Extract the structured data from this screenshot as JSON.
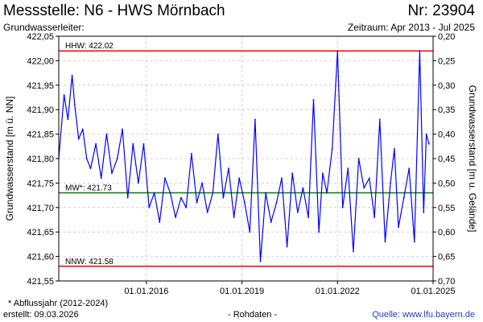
{
  "header": {
    "title": "Messstelle: N6 - HWS Mörnbach",
    "number": "Nr: 23904",
    "aquifer": "Grundwasserleiter:",
    "period": "Zeitraum: Apr 2013 - Jul 2025"
  },
  "footer": {
    "note": "* Abflussjahr (2012-2024)",
    "created": "erstellt:  09.03.2026",
    "rawdata": "- Rohdaten -",
    "source": "Quelle: www.lfu.bayern.de"
  },
  "colors": {
    "series": "#0000ff",
    "high_line": "#ff0000",
    "mean_line": "#008000",
    "low_line": "#ff0000",
    "grid": "#c8c8c8"
  },
  "chart_data": {
    "type": "line",
    "ylabel": "Grundwasserstand [m ü. NN]",
    "y2label": "Grundwasserstand [m u. Gelände]",
    "ylim": [
      421.55,
      422.05
    ],
    "y2lim": [
      0.7,
      0.2
    ],
    "xlim": [
      "2013-04-01",
      "2025-01-01"
    ],
    "yticks": [
      "421,55",
      "421,60",
      "421,65",
      "421,70",
      "421,75",
      "421,80",
      "421,85",
      "421,90",
      "421,95",
      "422,00",
      "422,05"
    ],
    "y2ticks": [
      "0,70",
      "0,65",
      "0,60",
      "0,55",
      "0,50",
      "0,45",
      "0,40",
      "0,35",
      "0,30",
      "0,25",
      "0,20"
    ],
    "xticks": [
      {
        "date": "2016-01-01",
        "label": "01.01.2016"
      },
      {
        "date": "2019-01-01",
        "label": "01.01.2019"
      },
      {
        "date": "2022-01-01",
        "label": "01.01.2022"
      },
      {
        "date": "2025-01-01",
        "label": "01.01.2025"
      }
    ],
    "grid": true,
    "reference_lines": [
      {
        "label": "HHW: 422.02",
        "value": 422.02,
        "kind": "high"
      },
      {
        "label": "MW*: 421.73",
        "value": 421.73,
        "kind": "mean"
      },
      {
        "label": "NNW: 421.58",
        "value": 421.58,
        "kind": "low"
      }
    ],
    "series": [
      {
        "x": [
          "2013-04-01",
          "2013-06-01",
          "2013-07-15",
          "2013-09-01",
          "2013-10-01",
          "2013-11-15",
          "2014-01-01",
          "2014-02-15",
          "2014-04-01",
          "2014-06-01",
          "2014-08-01",
          "2014-10-01",
          "2014-12-01",
          "2015-02-01",
          "2015-04-01",
          "2015-06-01",
          "2015-08-01",
          "2015-10-01",
          "2015-12-01",
          "2016-02-01",
          "2016-04-01",
          "2016-06-01",
          "2016-08-01",
          "2016-10-01",
          "2016-12-01",
          "2017-02-01",
          "2017-04-01",
          "2017-06-01",
          "2017-08-01",
          "2017-10-01",
          "2017-12-01",
          "2018-02-01",
          "2018-04-01",
          "2018-06-01",
          "2018-08-01",
          "2018-10-01",
          "2018-12-01",
          "2019-02-01",
          "2019-04-01",
          "2019-06-01",
          "2019-08-01",
          "2019-10-01",
          "2019-12-01",
          "2020-02-01",
          "2020-04-01",
          "2020-06-01",
          "2020-08-01",
          "2020-10-01",
          "2020-12-01",
          "2021-02-01",
          "2021-04-01",
          "2021-06-01",
          "2021-07-15",
          "2021-09-01",
          "2021-11-01",
          "2022-01-01",
          "2022-03-01",
          "2022-05-01",
          "2022-07-01",
          "2022-09-01",
          "2022-11-01",
          "2023-01-01",
          "2023-03-01",
          "2023-05-01",
          "2023-07-01",
          "2023-09-01",
          "2023-10-15",
          "2023-12-01",
          "2024-02-01",
          "2024-04-01",
          "2024-06-01",
          "2024-08-01",
          "2024-09-15",
          "2024-10-15",
          "2024-11-15"
        ],
        "values": [
          421.8,
          421.93,
          421.88,
          421.97,
          421.91,
          421.84,
          421.86,
          421.8,
          421.78,
          421.83,
          421.76,
          421.85,
          421.77,
          421.8,
          421.86,
          421.72,
          421.83,
          421.75,
          421.83,
          421.7,
          421.73,
          421.67,
          421.76,
          421.73,
          421.68,
          421.72,
          421.7,
          421.81,
          421.71,
          421.75,
          421.69,
          421.73,
          421.85,
          421.72,
          421.78,
          421.68,
          421.76,
          421.71,
          421.65,
          421.88,
          421.59,
          421.73,
          421.67,
          421.71,
          421.76,
          421.62,
          421.77,
          421.69,
          421.74,
          421.68,
          421.92,
          421.65,
          421.77,
          421.73,
          421.82,
          422.02,
          421.7,
          421.78,
          421.61,
          421.8,
          421.74,
          421.76,
          421.68,
          421.88,
          421.63,
          421.75,
          421.82,
          421.66,
          421.72,
          421.78,
          421.63,
          422.02,
          421.69,
          421.85,
          421.83
        ]
      }
    ]
  }
}
